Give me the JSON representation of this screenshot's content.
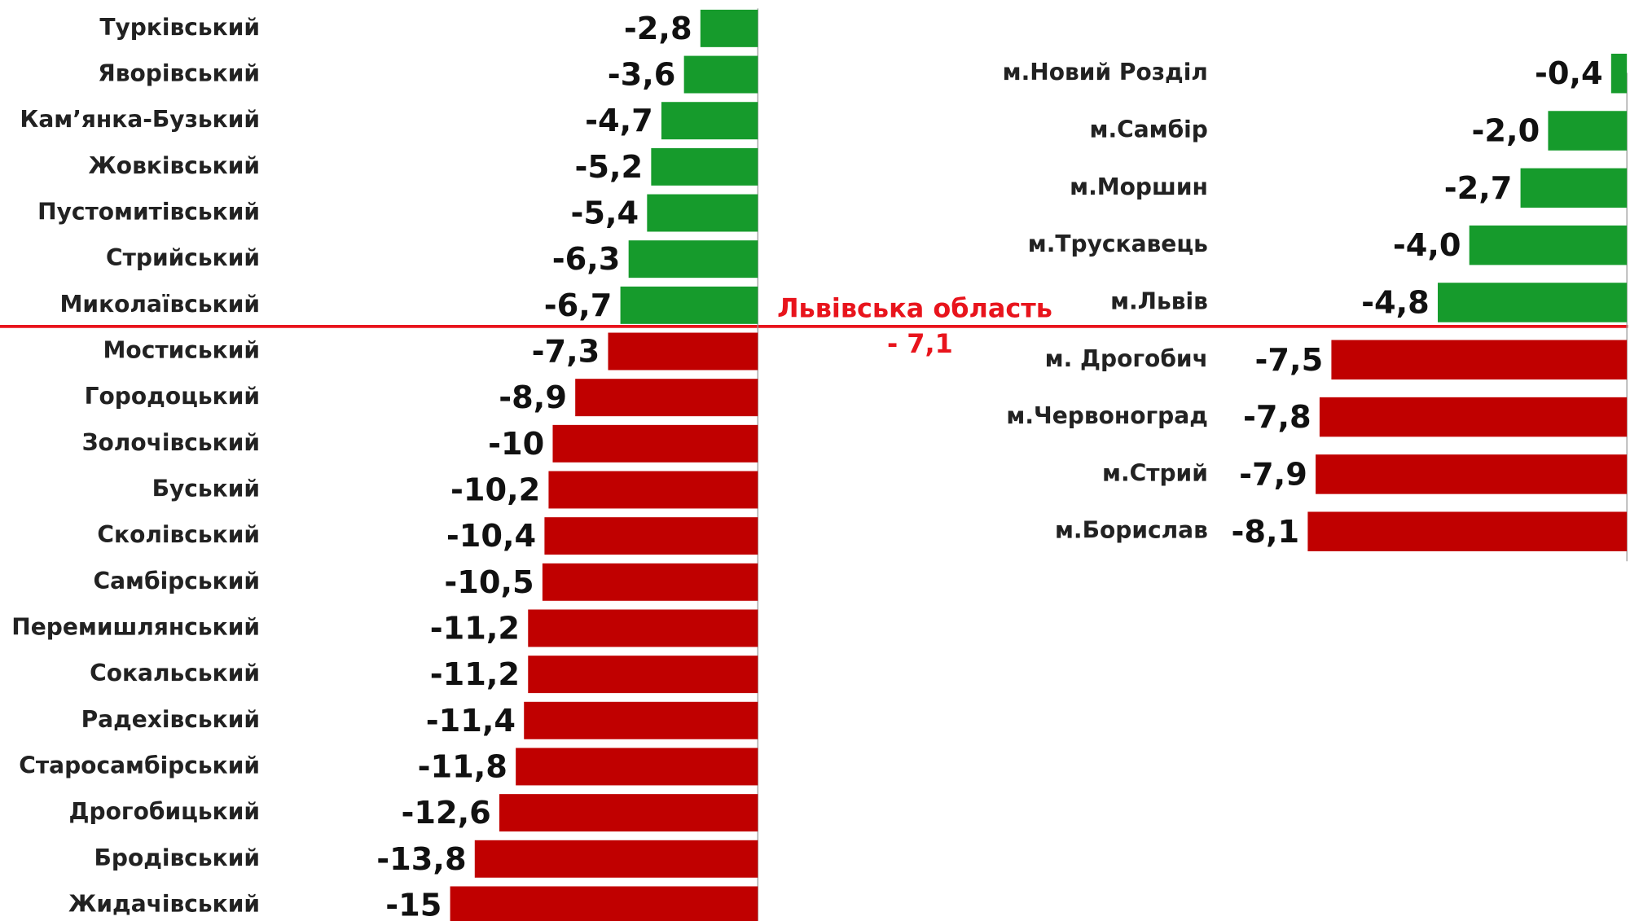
{
  "chart_data": [
    {
      "type": "bar",
      "orientation": "horizontal",
      "categories": [
        "Турківський",
        "Яворівський",
        "Кам’янка-Бузький",
        "Жовківський",
        "Пустомитівський",
        "Стрийський",
        "Миколаївський",
        "Мостиський",
        "Городоцький",
        "Золочівський",
        "Буський",
        "Сколівський",
        "Самбірський",
        "Перемишлянський",
        "Сокальський",
        "Радехівський",
        "Старосамбірський",
        "Дрогобицький",
        "Бродівський",
        "Жидачівський"
      ],
      "values": [
        -2.8,
        -3.6,
        -4.7,
        -5.2,
        -5.4,
        -6.3,
        -6.7,
        -7.3,
        -8.9,
        -10,
        -10.2,
        -10.4,
        -10.5,
        -11.2,
        -11.2,
        -11.4,
        -11.8,
        -12.6,
        -13.8,
        -15
      ],
      "value_labels": [
        "-2,8",
        "-3,6",
        "-4,7",
        "-5,2",
        "-5,4",
        "-6,3",
        "-6,7",
        "-7,3",
        "-8,9",
        "-10",
        "-10,2",
        "-10,4",
        "-10,5",
        "-11,2",
        "-11,2",
        "-11,4",
        "-11,8",
        "-12,6",
        "-13,8",
        "-15"
      ],
      "xlim": [
        -15,
        0
      ]
    },
    {
      "type": "bar",
      "orientation": "horizontal",
      "categories": [
        "м.Новий Розділ",
        "м.Самбір",
        "м.Моршин",
        "м.Трускавець",
        "м.Львів",
        "м. Дрогобич",
        "м.Червоноград",
        "м.Стрий",
        "м.Борислав"
      ],
      "values": [
        -0.4,
        -2.0,
        -2.7,
        -4.0,
        -4.8,
        -7.5,
        -7.8,
        -7.9,
        -8.1
      ],
      "value_labels": [
        "-0,4",
        "-2,0",
        "-2,7",
        "-4,0",
        "-4,8",
        "-7,5",
        "-7,8",
        "-7,9",
        "-8,1"
      ],
      "xlim": [
        -8.1,
        0
      ]
    }
  ],
  "reference": {
    "label": "Львівська область",
    "value": -7.1,
    "value_label": "- 7,1",
    "color": "#e8141c"
  },
  "colors": {
    "above": "#169b2c",
    "below": "#c00000"
  }
}
